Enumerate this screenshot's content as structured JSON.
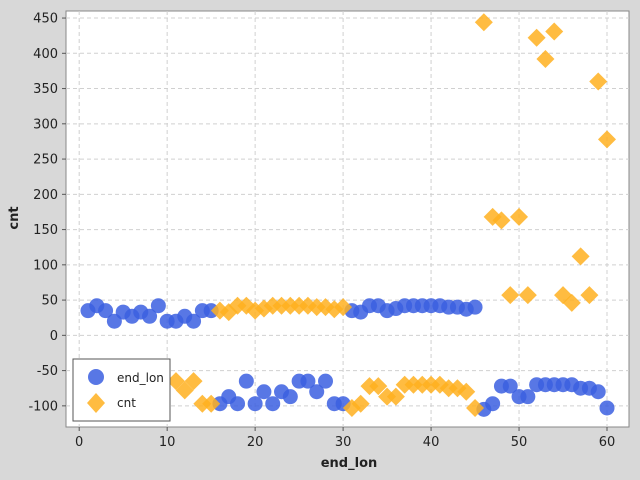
{
  "chart_data": {
    "type": "scatter",
    "title": "",
    "xlabel": "end_lon",
    "ylabel": "cnt",
    "xlim": [
      -1.5,
      62.5
    ],
    "ylim": [
      -130,
      460
    ],
    "xticks": [
      0,
      10,
      20,
      30,
      40,
      50,
      60
    ],
    "yticks": [
      -100,
      -50,
      0,
      50,
      100,
      150,
      200,
      250,
      300,
      350,
      400,
      450
    ],
    "grid": true,
    "legend_position": "bottom-left",
    "series": [
      {
        "name": "end_lon",
        "marker": "circle",
        "color": "#3b5fe0",
        "points": [
          [
            1,
            35
          ],
          [
            2,
            42
          ],
          [
            3,
            35
          ],
          [
            4,
            20
          ],
          [
            5,
            33
          ],
          [
            6,
            27
          ],
          [
            7,
            33
          ],
          [
            8,
            27
          ],
          [
            9,
            42
          ],
          [
            10,
            20
          ],
          [
            11,
            20
          ],
          [
            12,
            27
          ],
          [
            13,
            20
          ],
          [
            14,
            35
          ],
          [
            15,
            35
          ],
          [
            16,
            -97
          ],
          [
            17,
            -87
          ],
          [
            18,
            -97
          ],
          [
            19,
            -65
          ],
          [
            20,
            -97
          ],
          [
            21,
            -80
          ],
          [
            22,
            -97
          ],
          [
            23,
            -80
          ],
          [
            24,
            -87
          ],
          [
            25,
            -65
          ],
          [
            26,
            -65
          ],
          [
            27,
            -80
          ],
          [
            28,
            -65
          ],
          [
            29,
            -97
          ],
          [
            30,
            -97
          ],
          [
            31,
            35
          ],
          [
            32,
            33
          ],
          [
            33,
            42
          ],
          [
            34,
            42
          ],
          [
            35,
            35
          ],
          [
            36,
            38
          ],
          [
            37,
            42
          ],
          [
            38,
            42
          ],
          [
            39,
            42
          ],
          [
            40,
            42
          ],
          [
            41,
            42
          ],
          [
            42,
            40
          ],
          [
            43,
            40
          ],
          [
            44,
            37
          ],
          [
            45,
            40
          ],
          [
            46,
            -105
          ],
          [
            47,
            -97
          ],
          [
            48,
            -72
          ],
          [
            49,
            -72
          ],
          [
            50,
            -87
          ],
          [
            51,
            -87
          ],
          [
            52,
            -70
          ],
          [
            53,
            -70
          ],
          [
            54,
            -70
          ],
          [
            55,
            -70
          ],
          [
            56,
            -70
          ],
          [
            57,
            -75
          ],
          [
            58,
            -75
          ],
          [
            59,
            -80
          ],
          [
            60,
            -103
          ]
        ]
      },
      {
        "name": "cnt",
        "marker": "diamond",
        "color": "#ffb020",
        "points": [
          [
            11,
            -65
          ],
          [
            12,
            -78
          ],
          [
            13,
            -65
          ],
          [
            14,
            -97
          ],
          [
            15,
            -97
          ],
          [
            16,
            35
          ],
          [
            17,
            33
          ],
          [
            18,
            42
          ],
          [
            19,
            42
          ],
          [
            20,
            35
          ],
          [
            21,
            38
          ],
          [
            22,
            42
          ],
          [
            23,
            42
          ],
          [
            24,
            42
          ],
          [
            25,
            42
          ],
          [
            26,
            42
          ],
          [
            27,
            40
          ],
          [
            28,
            40
          ],
          [
            29,
            37
          ],
          [
            30,
            40
          ],
          [
            31,
            -103
          ],
          [
            32,
            -97
          ],
          [
            33,
            -72
          ],
          [
            34,
            -72
          ],
          [
            35,
            -87
          ],
          [
            36,
            -87
          ],
          [
            37,
            -70
          ],
          [
            38,
            -70
          ],
          [
            39,
            -70
          ],
          [
            40,
            -70
          ],
          [
            41,
            -70
          ],
          [
            42,
            -75
          ],
          [
            43,
            -75
          ],
          [
            44,
            -80
          ],
          [
            45,
            -103
          ],
          [
            46,
            444
          ],
          [
            47,
            168
          ],
          [
            48,
            163
          ],
          [
            49,
            57
          ],
          [
            50,
            168
          ],
          [
            51,
            57
          ],
          [
            52,
            422
          ],
          [
            53,
            392
          ],
          [
            54,
            431
          ],
          [
            55,
            57
          ],
          [
            56,
            46
          ],
          [
            57,
            112
          ],
          [
            58,
            57
          ],
          [
            59,
            360
          ],
          [
            60,
            278
          ]
        ]
      }
    ]
  }
}
